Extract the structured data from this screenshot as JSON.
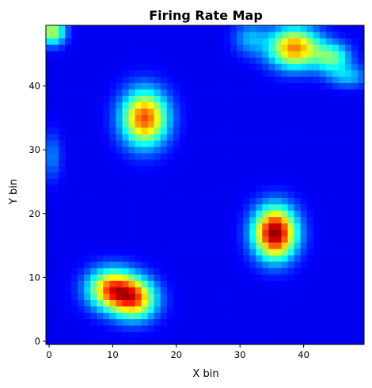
{
  "chart_data": {
    "type": "heatmap",
    "title": "Firing Rate Map",
    "xlabel": "X bin",
    "ylabel": "Y bin",
    "grid_size": [
      50,
      50
    ],
    "xlim": [
      -0.5,
      49.5
    ],
    "ylim": [
      -0.5,
      49.5
    ],
    "x_ticks": [
      0,
      10,
      20,
      30,
      40
    ],
    "y_ticks": [
      0,
      10,
      20,
      30,
      40
    ],
    "colormap": "jet",
    "background_level": 0.0,
    "fields": [
      {
        "x": 35.5,
        "y": 17.0,
        "sx": 2.3,
        "sy": 2.8,
        "peak": 1.0
      },
      {
        "x": 9.8,
        "y": 8.2,
        "sx": 2.6,
        "sy": 2.2,
        "peak": 0.72
      },
      {
        "x": 13.5,
        "y": 6.6,
        "sx": 2.4,
        "sy": 2.2,
        "peak": 0.66
      },
      {
        "x": 15.0,
        "y": 35.0,
        "sx": 2.5,
        "sy": 3.0,
        "peak": 0.78
      },
      {
        "x": 38.5,
        "y": 46.0,
        "sx": 2.8,
        "sy": 2.2,
        "peak": 0.72
      },
      {
        "x": 44.5,
        "y": 44.5,
        "sx": 2.0,
        "sy": 1.6,
        "peak": 0.38
      },
      {
        "x": 47.0,
        "y": 41.5,
        "sx": 2.2,
        "sy": 1.2,
        "peak": 0.22
      },
      {
        "x": 0.5,
        "y": 48.5,
        "sx": 1.4,
        "sy": 1.4,
        "peak": 0.52
      },
      {
        "x": 0.5,
        "y": 29.0,
        "sx": 1.0,
        "sy": 2.6,
        "peak": 0.16
      },
      {
        "x": 31.5,
        "y": 47.5,
        "sx": 1.8,
        "sy": 1.8,
        "peak": 0.2
      }
    ]
  }
}
